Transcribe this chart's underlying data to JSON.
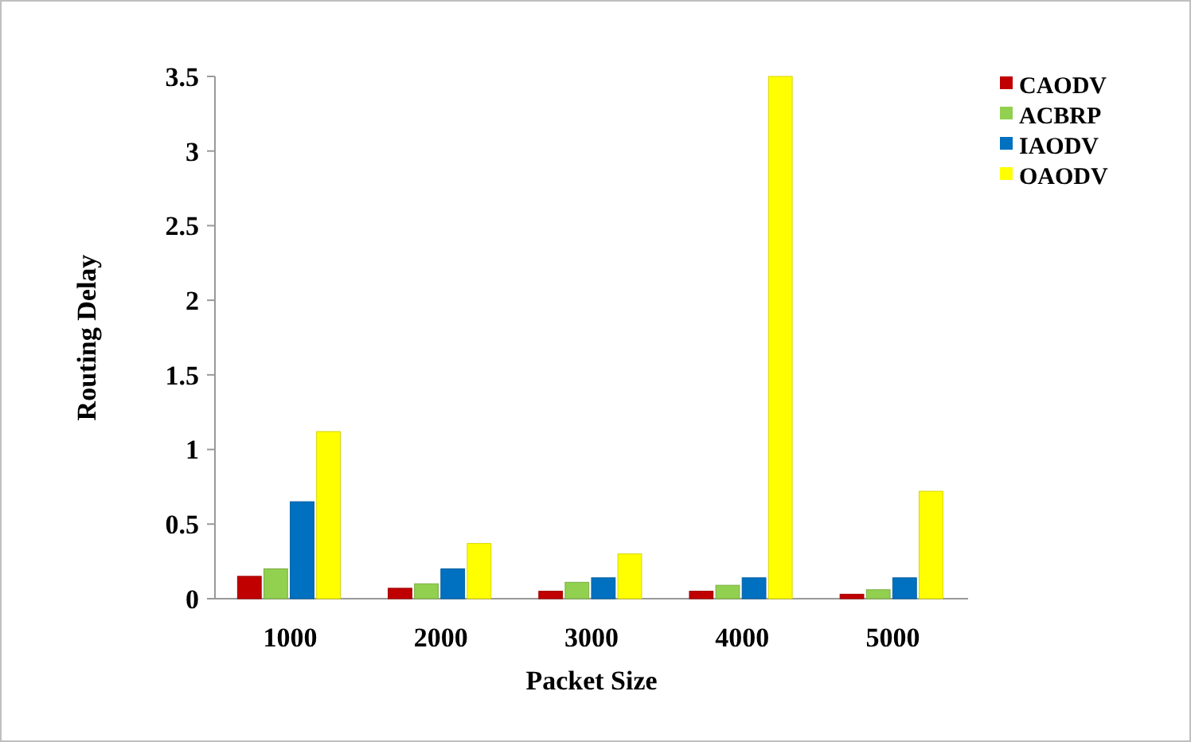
{
  "chart_data": {
    "type": "bar",
    "xlabel": "Packet Size",
    "ylabel": "Routing Delay",
    "categories": [
      "1000",
      "2000",
      "3000",
      "4000",
      "5000"
    ],
    "series": [
      {
        "name": "CAODV",
        "color": "#c00000",
        "values": [
          0.15,
          0.07,
          0.05,
          0.05,
          0.03
        ]
      },
      {
        "name": "ACBRP",
        "color": "#92d050",
        "values": [
          0.2,
          0.1,
          0.11,
          0.09,
          0.06
        ]
      },
      {
        "name": "IAODV",
        "color": "#0070c0",
        "values": [
          0.65,
          0.2,
          0.14,
          0.14,
          0.14
        ]
      },
      {
        "name": "OAODV",
        "color": "#ffff00",
        "values": [
          1.12,
          0.37,
          0.3,
          3.5,
          0.72
        ]
      }
    ],
    "ylim": [
      0,
      3.5
    ],
    "yticks": [
      0,
      0.5,
      1,
      1.5,
      2,
      2.5,
      3,
      3.5
    ],
    "grid": false,
    "legend": "top right"
  }
}
